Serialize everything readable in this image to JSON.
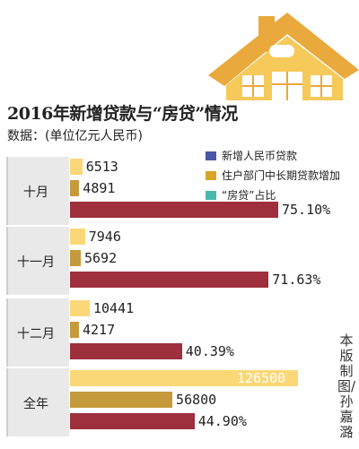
{
  "title": "2016年新增贷款与“房贷”情况",
  "subtitle": "数据：(单位亿元人民币)",
  "legend": [
    {
      "label": "新增人民币贷款",
      "color": "#4a56a6"
    },
    {
      "label": "住户部门中长期贷款增加",
      "color": "#d8a429"
    },
    {
      "label": "“房贷”占比",
      "color": "#4bb8ad"
    }
  ],
  "credit": "本版制图/孙嘉潞",
  "colors": {
    "new_loans": "#fad877",
    "household_loans": "#c49a3d",
    "share": "#9e2f3d",
    "panel": "#e9e9e9",
    "house_wall": "#f6c95b",
    "house_roof": "#e9a93c"
  },
  "chart_data": {
    "type": "bar",
    "orientation": "horizontal",
    "categories": [
      "十月",
      "十一月",
      "十二月",
      "全年"
    ],
    "series": [
      {
        "name": "新增人民币贷款",
        "values": [
          6513,
          7946,
          10441,
          126500
        ],
        "labels": [
          "6513",
          "7946",
          "10441",
          "126500"
        ]
      },
      {
        "name": "住户部门中长期贷款增加",
        "values": [
          4891,
          5692,
          4217,
          56800
        ],
        "labels": [
          "4891",
          "5692",
          "4217",
          "56800"
        ]
      },
      {
        "name": "“房贷”占比",
        "values": [
          75.1,
          71.63,
          40.39,
          44.9
        ],
        "labels": [
          "75.10%",
          "71.63%",
          "40.39%",
          "44.90%"
        ]
      }
    ]
  }
}
